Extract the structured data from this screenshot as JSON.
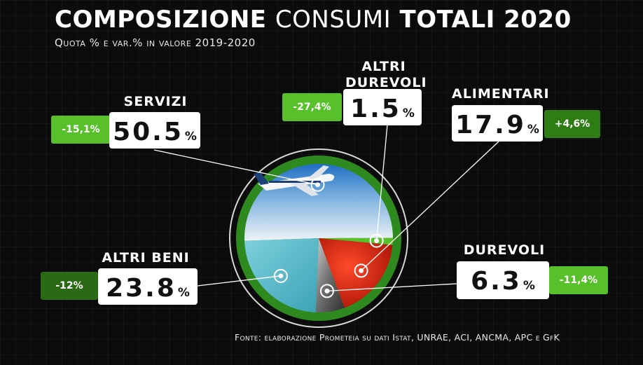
{
  "header": {
    "title_bold_1": "COMPOSIZIONE",
    "title_light": "CONSUMI",
    "title_bold_2": "TOTALI 2020",
    "subtitle": "Quota % e var.% in valore 2019-2020"
  },
  "source": "Fonte: elaborazione Prometeia su dati Istat, UNRAE, ACI, ANCMA, APC e GfK",
  "colors": {
    "green_light": "#58c02a",
    "green_dark": "#2e7d14",
    "ring": "#2e8a1e"
  },
  "chart_data": {
    "type": "pie",
    "title": "COMPOSIZIONE CONSUMI TOTALI 2020",
    "subtitle": "Quota % e var.% in valore 2019-2020",
    "value_unit": "%",
    "slices": [
      {
        "label": "SERVIZI",
        "value": 50.5,
        "value_text": "50.5",
        "change": "-15,1%",
        "image": "airplane-in-sky"
      },
      {
        "label": "ALTRI DUREVOLI",
        "value": 1.5,
        "value_text": "1.5",
        "change": "-27,4%",
        "image": "green-wedge"
      },
      {
        "label": "ALIMENTARI",
        "value": 17.9,
        "value_text": "17.9",
        "change": "+4,6%",
        "image": "tomatoes"
      },
      {
        "label": "DUREVOLI",
        "value": 6.3,
        "value_text": "6.3",
        "change": "-11,4%",
        "image": "car-interior"
      },
      {
        "label": "ALTRI BENI",
        "value": 23.8,
        "value_text": "23.8",
        "change": "-12%",
        "image": "red-sneakers"
      }
    ]
  }
}
